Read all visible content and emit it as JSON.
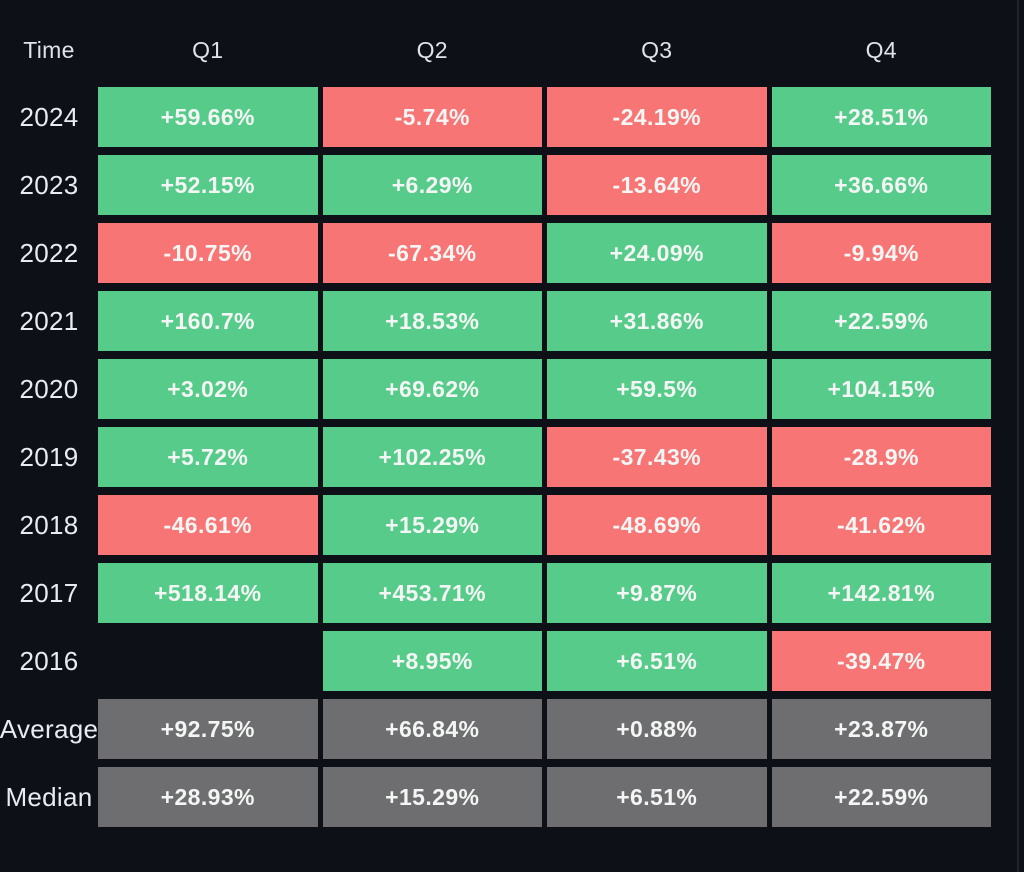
{
  "colors": {
    "background": "#0d1016",
    "positive": "#56cb8a",
    "negative": "#f87575",
    "neutral": "#6e6e70",
    "header_text": "#dfe3ea",
    "label_text": "#e9ebf2",
    "cell_text": "#f3f6f4"
  },
  "table": {
    "header": {
      "time": "Time",
      "quarters": [
        "Q1",
        "Q2",
        "Q3",
        "Q4"
      ]
    },
    "rows": [
      {
        "label": "2024",
        "cells": [
          {
            "text": "+59.66%",
            "tone": "pos"
          },
          {
            "text": "-5.74%",
            "tone": "neg"
          },
          {
            "text": "-24.19%",
            "tone": "neg"
          },
          {
            "text": "+28.51%",
            "tone": "pos"
          }
        ]
      },
      {
        "label": "2023",
        "cells": [
          {
            "text": "+52.15%",
            "tone": "pos"
          },
          {
            "text": "+6.29%",
            "tone": "pos"
          },
          {
            "text": "-13.64%",
            "tone": "neg"
          },
          {
            "text": "+36.66%",
            "tone": "pos"
          }
        ]
      },
      {
        "label": "2022",
        "cells": [
          {
            "text": "-10.75%",
            "tone": "neg"
          },
          {
            "text": "-67.34%",
            "tone": "neg"
          },
          {
            "text": "+24.09%",
            "tone": "pos"
          },
          {
            "text": "-9.94%",
            "tone": "neg"
          }
        ]
      },
      {
        "label": "2021",
        "cells": [
          {
            "text": "+160.7%",
            "tone": "pos"
          },
          {
            "text": "+18.53%",
            "tone": "pos"
          },
          {
            "text": "+31.86%",
            "tone": "pos"
          },
          {
            "text": "+22.59%",
            "tone": "pos"
          }
        ]
      },
      {
        "label": "2020",
        "cells": [
          {
            "text": "+3.02%",
            "tone": "pos"
          },
          {
            "text": "+69.62%",
            "tone": "pos"
          },
          {
            "text": "+59.5%",
            "tone": "pos"
          },
          {
            "text": "+104.15%",
            "tone": "pos"
          }
        ]
      },
      {
        "label": "2019",
        "cells": [
          {
            "text": "+5.72%",
            "tone": "pos"
          },
          {
            "text": "+102.25%",
            "tone": "pos"
          },
          {
            "text": "-37.43%",
            "tone": "neg"
          },
          {
            "text": "-28.9%",
            "tone": "neg"
          }
        ]
      },
      {
        "label": "2018",
        "cells": [
          {
            "text": "-46.61%",
            "tone": "neg"
          },
          {
            "text": "+15.29%",
            "tone": "pos"
          },
          {
            "text": "-48.69%",
            "tone": "neg"
          },
          {
            "text": "-41.62%",
            "tone": "neg"
          }
        ]
      },
      {
        "label": "2017",
        "cells": [
          {
            "text": "+518.14%",
            "tone": "pos"
          },
          {
            "text": "+453.71%",
            "tone": "pos"
          },
          {
            "text": "+9.87%",
            "tone": "pos"
          },
          {
            "text": "+142.81%",
            "tone": "pos"
          }
        ]
      },
      {
        "label": "2016",
        "cells": [
          {
            "text": "",
            "tone": "empty"
          },
          {
            "text": "+8.95%",
            "tone": "pos"
          },
          {
            "text": "+6.51%",
            "tone": "pos"
          },
          {
            "text": "-39.47%",
            "tone": "neg"
          }
        ]
      },
      {
        "label": "Average",
        "cells": [
          {
            "text": "+92.75%",
            "tone": "neutral"
          },
          {
            "text": "+66.84%",
            "tone": "neutral"
          },
          {
            "text": "+0.88%",
            "tone": "neutral"
          },
          {
            "text": "+23.87%",
            "tone": "neutral"
          }
        ]
      },
      {
        "label": "Median",
        "cells": [
          {
            "text": "+28.93%",
            "tone": "neutral"
          },
          {
            "text": "+15.29%",
            "tone": "neutral"
          },
          {
            "text": "+6.51%",
            "tone": "neutral"
          },
          {
            "text": "+22.59%",
            "tone": "neutral"
          }
        ]
      }
    ]
  },
  "chart_data": {
    "type": "heatmap",
    "x_labels": [
      "Q1",
      "Q2",
      "Q3",
      "Q4"
    ],
    "y_labels": [
      "2024",
      "2023",
      "2022",
      "2021",
      "2020",
      "2019",
      "2018",
      "2017",
      "2016",
      "Average",
      "Median"
    ],
    "values_percent": [
      [
        59.66,
        -5.74,
        -24.19,
        28.51
      ],
      [
        52.15,
        6.29,
        -13.64,
        36.66
      ],
      [
        -10.75,
        -67.34,
        24.09,
        -9.94
      ],
      [
        160.7,
        18.53,
        31.86,
        22.59
      ],
      [
        3.02,
        69.62,
        59.5,
        104.15
      ],
      [
        5.72,
        102.25,
        -37.43,
        -28.9
      ],
      [
        -46.61,
        15.29,
        -48.69,
        -41.62
      ],
      [
        518.14,
        453.71,
        9.87,
        142.81
      ],
      [
        null,
        8.95,
        6.51,
        -39.47
      ],
      [
        92.75,
        66.84,
        0.88,
        23.87
      ],
      [
        28.93,
        15.29,
        6.51,
        22.59
      ]
    ],
    "legend_position": "none",
    "grid": false,
    "color_encoding": {
      "positive_cells": "#56cb8a",
      "negative_cells": "#f87575",
      "summary_rows": "#6e6e70",
      "missing_cells": "transparent"
    }
  }
}
